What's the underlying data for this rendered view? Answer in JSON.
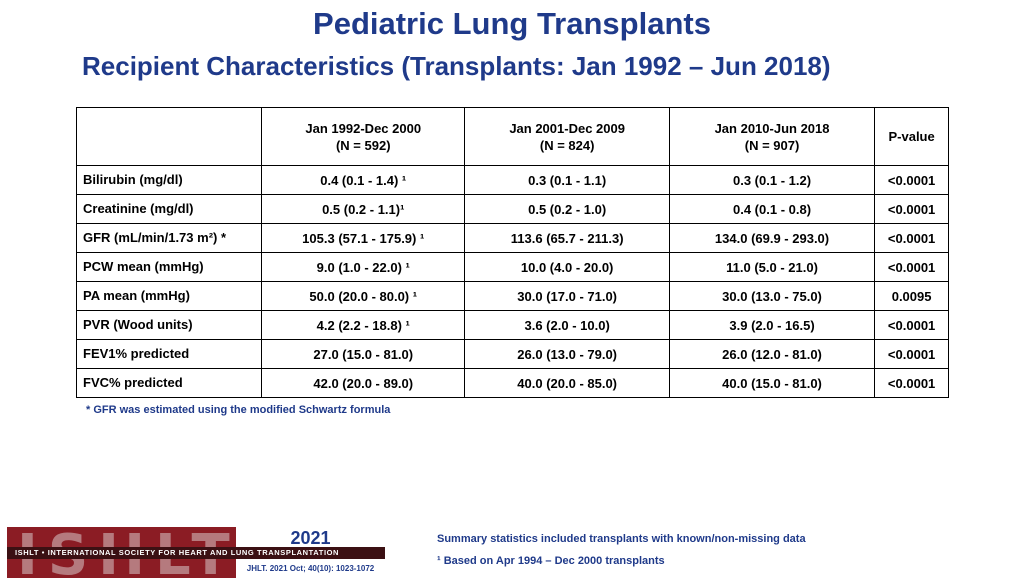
{
  "title": "Pediatric Lung Transplants",
  "subtitle": "Recipient Characteristics (Transplants: Jan 1992 – Jun 2018)",
  "table": {
    "headers": [
      {
        "line1": "",
        "line2": ""
      },
      {
        "line1": "Jan 1992-Dec 2000",
        "line2": "(N = 592)"
      },
      {
        "line1": "Jan 2001-Dec 2009",
        "line2": "(N = 824)"
      },
      {
        "line1": "Jan 2010-Jun 2018",
        "line2": "(N = 907)"
      },
      {
        "line1": "P-value",
        "line2": ""
      }
    ],
    "rows": [
      {
        "label": "Bilirubin (mg/dl)",
        "c1": "0.4 (0.1 - 1.4) ¹",
        "c2": "0.3 (0.1 - 1.1)",
        "c3": "0.3 (0.1 - 1.2)",
        "p": "<0.0001"
      },
      {
        "label": "Creatinine (mg/dl)",
        "c1": "0.5 (0.2 - 1.1)¹",
        "c2": "0.5 (0.2 - 1.0)",
        "c3": "0.4 (0.1 - 0.8)",
        "p": "<0.0001"
      },
      {
        "label": "GFR (mL/min/1.73 m²) *",
        "c1": "105.3 (57.1 - 175.9) ¹",
        "c2": "113.6 (65.7 - 211.3)",
        "c3": "134.0 (69.9 - 293.0)",
        "p": "<0.0001"
      },
      {
        "label": "PCW mean (mmHg)",
        "c1": "9.0 (1.0 - 22.0) ¹",
        "c2": "10.0 (4.0 - 20.0)",
        "c3": "11.0 (5.0 - 21.0)",
        "p": "<0.0001"
      },
      {
        "label": "PA mean (mmHg)",
        "c1": "50.0 (20.0 - 80.0) ¹",
        "c2": "30.0 (17.0 - 71.0)",
        "c3": "30.0 (13.0 - 75.0)",
        "p": "0.0095"
      },
      {
        "label": "PVR (Wood units)",
        "c1": "4.2 (2.2 - 18.8) ¹",
        "c2": "3.6 (2.0 - 10.0)",
        "c3": "3.9 (2.0 - 16.5)",
        "p": "<0.0001"
      },
      {
        "label": "FEV1% predicted",
        "c1": "27.0 (15.0 - 81.0)",
        "c2": "26.0 (13.0 - 79.0)",
        "c3": "26.0 (12.0 - 81.0)",
        "p": "<0.0001"
      },
      {
        "label": "FVC% predicted",
        "c1": "42.0 (20.0 - 89.0)",
        "c2": "40.0 (20.0 - 85.0)",
        "c3": "40.0 (15.0 - 81.0)",
        "p": "<0.0001"
      }
    ]
  },
  "footnote_gfr": "* GFR was estimated using the modified Schwartz formula",
  "logo": {
    "letters": "ISHLT",
    "band": "ISHLT • INTERNATIONAL SOCIETY FOR HEART AND LUNG TRANSPLANTATION",
    "year": "2021",
    "citation": "JHLT. 2021 Oct; 40(10): 1023-1072"
  },
  "notes": {
    "summary": "Summary statistics included transplants with known/non-missing data",
    "based_on": "¹  Based on Apr 1994 – Dec 2000 transplants"
  },
  "colors": {
    "title": "#1f3a8a",
    "logo_bg": "#8b1c24"
  }
}
